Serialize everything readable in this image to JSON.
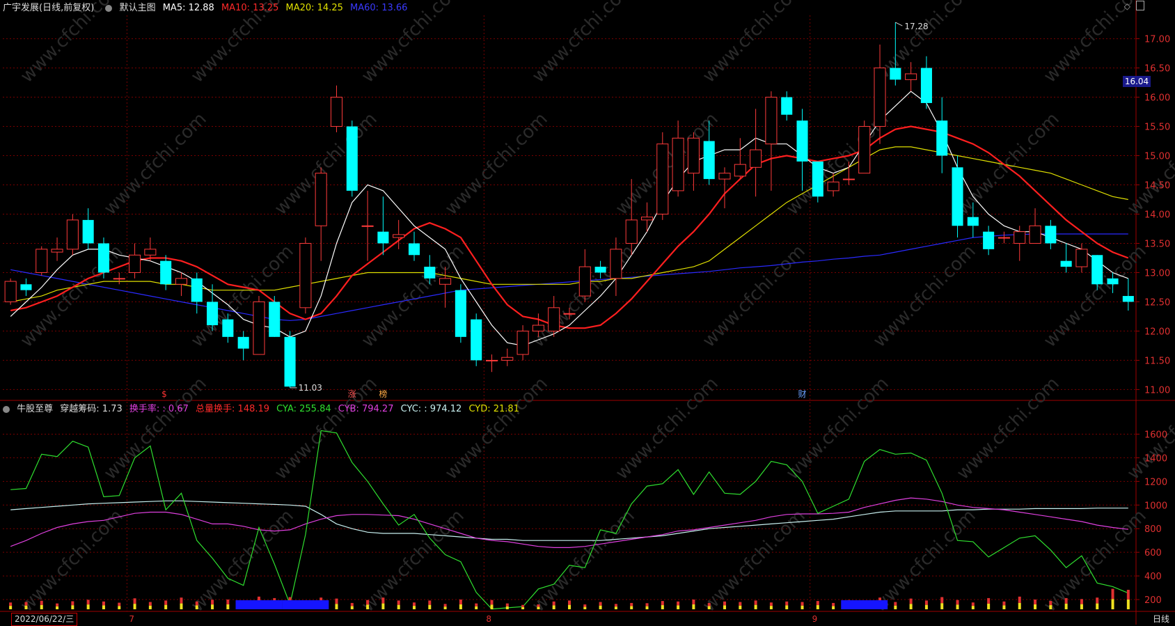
{
  "main_header": {
    "stock_name": "广宇发展(日线,前复权)",
    "indicator_name": "默认主图",
    "ma5": "MA5: 12.88",
    "ma10": "MA10: 13.25",
    "ma20": "MA20: 14.25",
    "ma60": "MA60: 13.66"
  },
  "sub_header": {
    "indicator_name": "牛股至尊",
    "chuanyue": "穿越筹码: 1.73",
    "huanshou": "换手率: : 0.67",
    "zongliang": "总量换手: 148.19",
    "cya": "CYA: 255.84",
    "cyb": "CYB: 794.27",
    "cyc": "CYC: : 974.12",
    "cyd": "CYD: 21.81"
  },
  "colors": {
    "up": "#ff3b3b",
    "down": "#00ffff",
    "ma5": "#ffffff",
    "ma10": "#ff1f1f",
    "ma20": "#e0e000",
    "ma60": "#2a2aff",
    "cya": "#2fe02f",
    "cyb": "#e040e0",
    "cyc": "#c8f0f0",
    "grid": "#7a0000"
  },
  "price_axis_labels": [
    "17.00",
    "16.50",
    "16.00",
    "15.50",
    "15.00",
    "14.50",
    "14.00",
    "13.50",
    "13.00",
    "12.50",
    "12.00",
    "11.50",
    "11.00"
  ],
  "sub_axis_labels": [
    "1600",
    "1400",
    "1200",
    "1000",
    "800",
    "600",
    "400",
    "200"
  ],
  "high_label": "17.28",
  "low_label": "11.03",
  "current_price": "16.04",
  "date_label": "2022/06/22/三",
  "month_labels": [
    "7",
    "8",
    "9"
  ],
  "period_label": "日线",
  "event_marks": [
    "$",
    "涨",
    "榜",
    "财"
  ],
  "chart_data": {
    "type": "candlestick",
    "price_range": [
      10.85,
      17.4
    ],
    "candles": [
      [
        12.5,
        12.85,
        12.45,
        12.9
      ],
      [
        12.8,
        12.7,
        12.6,
        12.9
      ],
      [
        13.0,
        13.4,
        12.95,
        13.45
      ],
      [
        13.35,
        13.4,
        13.2,
        13.6
      ],
      [
        13.4,
        13.9,
        13.3,
        14.0
      ],
      [
        13.9,
        13.5,
        13.4,
        14.1
      ],
      [
        13.5,
        13.0,
        12.9,
        13.6
      ],
      [
        12.9,
        12.9,
        12.8,
        13.0
      ],
      [
        13.0,
        13.3,
        12.9,
        13.5
      ],
      [
        13.3,
        13.4,
        13.2,
        13.6
      ],
      [
        13.2,
        12.8,
        12.7,
        13.3
      ],
      [
        12.8,
        12.9,
        12.6,
        13.0
      ],
      [
        12.9,
        12.5,
        12.3,
        13.0
      ],
      [
        12.5,
        12.1,
        12.0,
        12.8
      ],
      [
        12.2,
        11.9,
        11.8,
        12.3
      ],
      [
        11.9,
        11.7,
        11.5,
        12.0
      ],
      [
        11.6,
        12.5,
        11.6,
        12.6
      ],
      [
        12.5,
        11.9,
        11.9,
        12.6
      ],
      [
        11.9,
        11.05,
        11.03,
        12.0
      ],
      [
        12.4,
        13.5,
        12.3,
        13.6
      ],
      [
        13.8,
        14.7,
        13.2,
        14.8
      ],
      [
        15.5,
        16.0,
        15.4,
        16.2
      ],
      [
        15.5,
        14.4,
        14.3,
        15.6
      ],
      [
        13.8,
        13.8,
        13.2,
        14.4
      ],
      [
        13.7,
        13.5,
        13.3,
        14.3
      ],
      [
        13.6,
        13.65,
        13.4,
        13.9
      ],
      [
        13.5,
        13.3,
        13.2,
        13.7
      ],
      [
        13.1,
        12.9,
        12.8,
        13.3
      ],
      [
        12.8,
        12.9,
        12.4,
        13.1
      ],
      [
        12.7,
        11.9,
        11.8,
        12.8
      ],
      [
        12.2,
        11.5,
        11.4,
        12.3
      ],
      [
        11.5,
        11.5,
        11.3,
        11.6
      ],
      [
        11.5,
        11.55,
        11.4,
        11.7
      ],
      [
        11.6,
        12.0,
        11.5,
        12.1
      ],
      [
        12.0,
        12.1,
        11.9,
        12.3
      ],
      [
        12.0,
        12.4,
        11.9,
        12.6
      ],
      [
        12.3,
        12.3,
        12.2,
        12.4
      ],
      [
        12.6,
        13.1,
        12.5,
        13.4
      ],
      [
        13.1,
        13.0,
        12.9,
        13.2
      ],
      [
        12.9,
        13.4,
        12.6,
        13.6
      ],
      [
        13.5,
        13.9,
        13.3,
        14.6
      ],
      [
        13.9,
        13.95,
        13.7,
        14.2
      ],
      [
        14.0,
        15.2,
        13.9,
        15.4
      ],
      [
        14.4,
        15.3,
        14.3,
        15.6
      ],
      [
        14.7,
        15.3,
        14.4,
        15.4
      ],
      [
        15.25,
        14.6,
        14.5,
        15.6
      ],
      [
        14.6,
        14.7,
        14.1,
        14.8
      ],
      [
        14.65,
        14.85,
        14.6,
        15.3
      ],
      [
        14.8,
        15.1,
        14.3,
        15.8
      ],
      [
        15.2,
        16.0,
        14.4,
        16.1
      ],
      [
        16.0,
        15.7,
        15.6,
        16.1
      ],
      [
        15.6,
        14.9,
        14.4,
        15.8
      ],
      [
        14.9,
        14.3,
        14.2,
        14.9
      ],
      [
        14.4,
        14.55,
        14.3,
        14.7
      ],
      [
        14.6,
        14.6,
        14.5,
        14.9
      ],
      [
        14.7,
        15.5,
        14.7,
        15.6
      ],
      [
        15.5,
        16.5,
        15.2,
        16.9
      ],
      [
        16.5,
        16.3,
        16.2,
        17.28
      ],
      [
        16.3,
        16.4,
        16.1,
        16.6
      ],
      [
        16.5,
        15.9,
        15.8,
        16.7
      ],
      [
        15.6,
        15.0,
        14.7,
        16.0
      ],
      [
        14.8,
        13.8,
        13.6,
        15.0
      ],
      [
        13.95,
        13.8,
        13.6,
        14.2
      ],
      [
        13.7,
        13.4,
        13.3,
        13.8
      ],
      [
        13.6,
        13.6,
        13.5,
        13.7
      ],
      [
        13.5,
        13.7,
        13.2,
        13.8
      ],
      [
        13.5,
        13.8,
        13.5,
        14.1
      ],
      [
        13.8,
        13.5,
        13.4,
        13.9
      ],
      [
        13.2,
        13.1,
        13.0,
        13.5
      ],
      [
        13.1,
        13.4,
        13.0,
        13.5
      ],
      [
        13.3,
        12.8,
        12.7,
        13.3
      ],
      [
        12.9,
        12.8,
        12.65,
        13.0
      ],
      [
        12.6,
        12.5,
        12.35,
        12.9
      ]
    ],
    "ma5": [
      12.25,
      12.5,
      12.75,
      13.05,
      13.3,
      13.4,
      13.4,
      13.3,
      13.25,
      13.2,
      13.1,
      13.0,
      12.85,
      12.65,
      12.45,
      12.2,
      12.1,
      12.05,
      11.9,
      12.0,
      12.6,
      13.5,
      14.2,
      14.5,
      14.4,
      14.1,
      13.8,
      13.6,
      13.4,
      12.9,
      12.5,
      12.1,
      11.8,
      11.75,
      11.85,
      11.95,
      12.1,
      12.35,
      12.6,
      12.9,
      13.3,
      13.7,
      14.2,
      14.6,
      14.9,
      15.0,
      15.1,
      15.1,
      15.3,
      15.2,
      15.2,
      15.0,
      14.8,
      14.7,
      14.8,
      15.2,
      15.6,
      15.85,
      16.1,
      15.9,
      15.4,
      14.8,
      14.3,
      14.0,
      13.8,
      13.7,
      13.7,
      13.6,
      13.5,
      13.4,
      13.2,
      13.0,
      12.9
    ],
    "ma10": [
      12.35,
      12.4,
      12.5,
      12.6,
      12.75,
      12.9,
      13.0,
      13.1,
      13.2,
      13.25,
      13.25,
      13.2,
      13.1,
      12.95,
      12.8,
      12.75,
      12.7,
      12.5,
      12.3,
      12.2,
      12.3,
      12.6,
      12.95,
      13.15,
      13.35,
      13.55,
      13.75,
      13.85,
      13.75,
      13.6,
      13.2,
      12.8,
      12.45,
      12.25,
      12.2,
      12.1,
      12.05,
      12.05,
      12.1,
      12.3,
      12.55,
      12.85,
      13.15,
      13.45,
      13.7,
      14.0,
      14.35,
      14.6,
      14.85,
      14.95,
      15.0,
      14.95,
      14.9,
      14.95,
      15.0,
      15.1,
      15.3,
      15.45,
      15.5,
      15.45,
      15.4,
      15.3,
      15.2,
      15.05,
      14.85,
      14.65,
      14.4,
      14.15,
      13.9,
      13.7,
      13.5,
      13.35,
      13.25
    ],
    "ma20": [
      12.5,
      12.55,
      12.6,
      12.7,
      12.75,
      12.8,
      12.85,
      12.85,
      12.85,
      12.85,
      12.8,
      12.8,
      12.75,
      12.7,
      12.7,
      12.7,
      12.7,
      12.7,
      12.75,
      12.8,
      12.85,
      12.9,
      12.95,
      13.0,
      13.0,
      13.0,
      13.0,
      13.0,
      12.95,
      12.9,
      12.85,
      12.8,
      12.8,
      12.8,
      12.8,
      12.8,
      12.8,
      12.85,
      12.85,
      12.9,
      12.9,
      12.95,
      13.0,
      13.05,
      13.1,
      13.2,
      13.4,
      13.6,
      13.8,
      14.0,
      14.2,
      14.35,
      14.5,
      14.65,
      14.8,
      14.95,
      15.1,
      15.15,
      15.15,
      15.1,
      15.05,
      15.0,
      14.95,
      14.9,
      14.85,
      14.8,
      14.75,
      14.7,
      14.6,
      14.5,
      14.4,
      14.3,
      14.25
    ],
    "ma60": [
      13.05,
      13.0,
      12.95,
      12.9,
      12.85,
      12.8,
      12.75,
      12.7,
      12.65,
      12.6,
      12.55,
      12.5,
      12.45,
      12.4,
      12.35,
      12.3,
      12.25,
      12.2,
      12.18,
      12.2,
      12.25,
      12.3,
      12.35,
      12.4,
      12.45,
      12.5,
      12.55,
      12.6,
      12.65,
      12.7,
      12.72,
      12.74,
      12.76,
      12.78,
      12.8,
      12.82,
      12.84,
      12.86,
      12.88,
      12.9,
      12.92,
      12.94,
      12.96,
      12.98,
      13.0,
      13.02,
      13.05,
      13.08,
      13.1,
      13.12,
      13.15,
      13.18,
      13.2,
      13.23,
      13.25,
      13.28,
      13.3,
      13.35,
      13.4,
      13.45,
      13.5,
      13.55,
      13.6,
      13.62,
      13.64,
      13.65,
      13.66,
      13.66,
      13.66,
      13.66,
      13.66,
      13.66,
      13.66
    ],
    "sub_range": [
      100,
      1750
    ],
    "cya": [
      1130,
      1140,
      1430,
      1410,
      1540,
      1490,
      1070,
      1080,
      1400,
      1500,
      960,
      1100,
      700,
      550,
      380,
      320,
      810,
      500,
      160,
      750,
      1630,
      1610,
      1360,
      1200,
      1010,
      830,
      920,
      720,
      580,
      520,
      260,
      120,
      130,
      140,
      290,
      330,
      490,
      470,
      790,
      760,
      1010,
      1160,
      1180,
      1300,
      1090,
      1280,
      1100,
      1090,
      1200,
      1370,
      1340,
      1200,
      930,
      990,
      1050,
      1370,
      1470,
      1430,
      1440,
      1380,
      1100,
      700,
      690,
      560,
      640,
      720,
      740,
      620,
      470,
      570,
      340,
      310,
      255
    ],
    "cyb": [
      650,
      700,
      760,
      810,
      840,
      860,
      870,
      900,
      930,
      940,
      940,
      920,
      880,
      840,
      840,
      820,
      790,
      780,
      790,
      840,
      880,
      910,
      920,
      920,
      915,
      910,
      880,
      840,
      800,
      760,
      720,
      700,
      690,
      670,
      650,
      640,
      640,
      650,
      670,
      690,
      710,
      730,
      750,
      780,
      790,
      810,
      830,
      850,
      870,
      900,
      920,
      925,
      925,
      930,
      940,
      980,
      1010,
      1040,
      1060,
      1050,
      1030,
      1000,
      980,
      970,
      960,
      940,
      920,
      900,
      880,
      860,
      830,
      810,
      794
    ],
    "cyc": [
      960,
      970,
      980,
      990,
      1000,
      1010,
      1015,
      1020,
      1025,
      1030,
      1035,
      1035,
      1030,
      1025,
      1020,
      1015,
      1010,
      1005,
      1000,
      990,
      920,
      840,
      800,
      770,
      760,
      760,
      760,
      750,
      740,
      730,
      720,
      710,
      710,
      700,
      700,
      700,
      700,
      700,
      700,
      710,
      720,
      730,
      740,
      760,
      780,
      800,
      810,
      820,
      830,
      840,
      850,
      860,
      870,
      880,
      900,
      920,
      940,
      950,
      950,
      950,
      950,
      960,
      960,
      965,
      965,
      965,
      970,
      970,
      970,
      970,
      974,
      974,
      974
    ],
    "volume_bars": [
      28,
      30,
      35,
      24,
      33,
      39,
      32,
      27,
      45,
      30,
      36,
      48,
      32,
      39,
      40,
      33,
      52,
      46,
      50,
      22,
      48,
      44,
      26,
      38,
      48,
      36,
      28,
      36,
      22,
      40,
      24,
      38,
      24,
      18,
      20,
      32,
      36,
      20,
      30,
      22,
      26,
      25,
      34,
      32,
      40,
      26,
      32,
      30,
      36,
      28,
      32,
      30,
      34,
      26,
      38,
      28,
      48,
      30,
      44,
      36,
      50,
      38,
      28,
      46,
      32,
      52,
      40,
      34,
      46,
      42,
      48,
      84,
      80
    ],
    "blue_blocks": [
      [
        15,
        17
      ],
      [
        18,
        20
      ],
      [
        54,
        56
      ]
    ]
  }
}
